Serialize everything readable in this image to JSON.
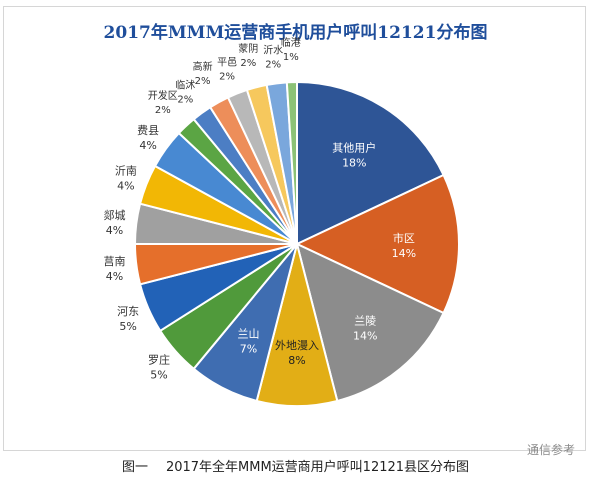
{
  "title": "2017年MMM运营商手机用户呼叫12121分布图",
  "caption_prefix": "图一",
  "caption_text": "2017年全年MMM运营商用户呼叫12121县区分布图",
  "watermark": "通信参考",
  "chart_data": {
    "type": "pie",
    "title": "2017年MMM运营商手机用户呼叫12121分布图",
    "start": "12 o'clock, clockwise",
    "slices": [
      {
        "label": "其他用户",
        "value": 18,
        "pct": "18%",
        "color": "#2e5596"
      },
      {
        "label": "市区",
        "value": 14,
        "pct": "14%",
        "color": "#d65f23"
      },
      {
        "label": "兰陵",
        "value": 14,
        "pct": "14%",
        "color": "#8c8c8c"
      },
      {
        "label": "外地漫入",
        "value": 8,
        "pct": "8%",
        "color": "#e2ae16"
      },
      {
        "label": "兰山",
        "value": 7,
        "pct": "7%",
        "color": "#3f6db1"
      },
      {
        "label": "罗庄",
        "value": 5,
        "pct": "5%",
        "color": "#509a3b"
      },
      {
        "label": "河东",
        "value": 5,
        "pct": "5%",
        "color": "#2262b7"
      },
      {
        "label": "莒南",
        "value": 4,
        "pct": "4%",
        "color": "#e56f2b"
      },
      {
        "label": "郯城",
        "value": 4,
        "pct": "4%",
        "color": "#a0a0a0"
      },
      {
        "label": "沂南",
        "value": 4,
        "pct": "4%",
        "color": "#f2b705"
      },
      {
        "label": "费县",
        "value": 4,
        "pct": "4%",
        "color": "#4889d2"
      },
      {
        "label": "开发区",
        "value": 2,
        "pct": "2%",
        "color": "#5ba544"
      },
      {
        "label": "临沭",
        "value": 2,
        "pct": "2%",
        "color": "#4c7ec4"
      },
      {
        "label": "高新",
        "value": 2,
        "pct": "2%",
        "color": "#ed8e5a"
      },
      {
        "label": "平邑",
        "value": 2,
        "pct": "2%",
        "color": "#b8b8b8"
      },
      {
        "label": "蒙阴",
        "value": 2,
        "pct": "2%",
        "color": "#f6c85d"
      },
      {
        "label": "沂水",
        "value": 2,
        "pct": "2%",
        "color": "#7aa7dc"
      },
      {
        "label": "临港",
        "value": 1,
        "pct": "1%",
        "color": "#8cc276"
      }
    ]
  }
}
